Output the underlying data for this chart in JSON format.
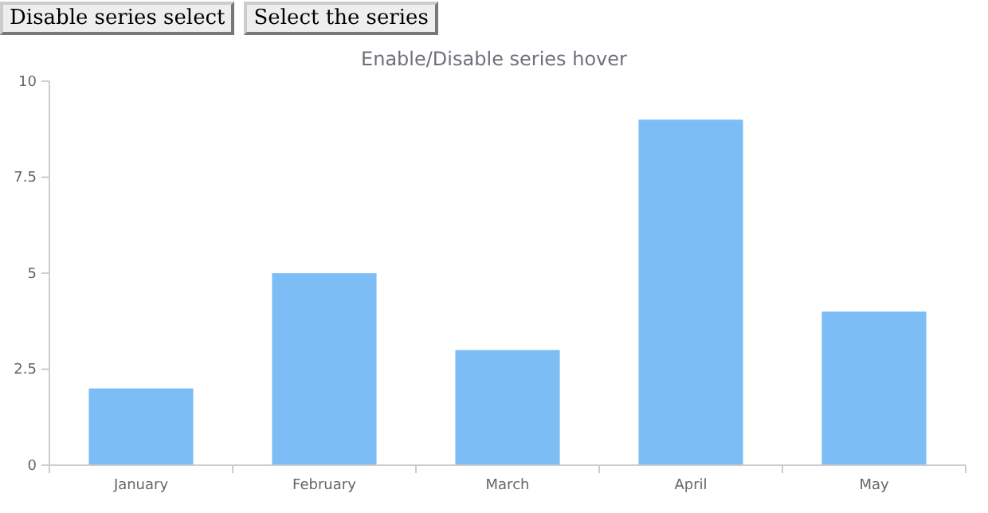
{
  "chart_data": {
    "type": "bar",
    "title": "Enable/Disable series hover",
    "categories": [
      "January",
      "February",
      "March",
      "April",
      "May"
    ],
    "values": [
      2,
      5,
      3,
      9,
      4
    ],
    "color": "#7cbdf5",
    "ylim": [
      0,
      10
    ],
    "yticks": [
      0,
      {
        "value": 2.5,
        "label": "2.5"
      },
      5,
      {
        "value": 7.5,
        "label": "7.5"
      },
      10
    ],
    "annotations": [
      "Disable series select",
      "Select the series"
    ]
  }
}
